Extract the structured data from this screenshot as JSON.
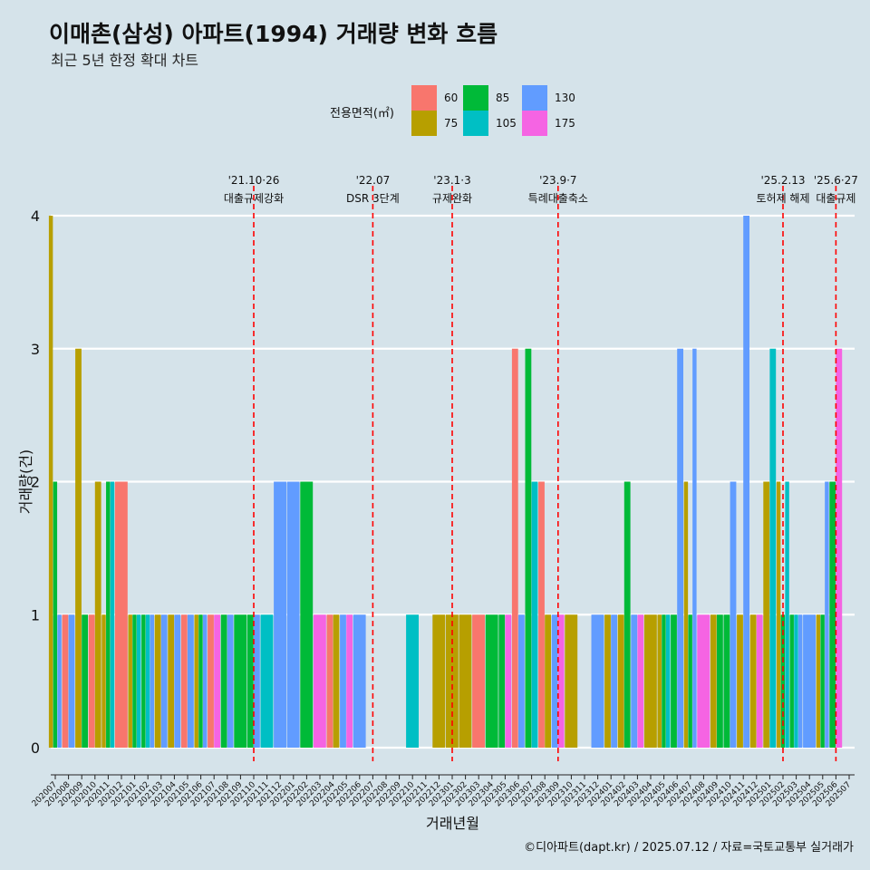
{
  "header": {
    "title": "이매촌(삼성) 아파트(1994) 거래량 변화 흐름",
    "subtitle": "최근 5년 한정 확대 차트"
  },
  "legend": {
    "title": "전용면적(㎡)",
    "items": [
      {
        "label": "60",
        "color": "#f8766d"
      },
      {
        "label": "75",
        "color": "#b79f00"
      },
      {
        "label": "85",
        "color": "#00ba38"
      },
      {
        "label": "105",
        "color": "#00bfc4"
      },
      {
        "label": "130",
        "color": "#619cff"
      },
      {
        "label": "175",
        "color": "#f564e3"
      }
    ]
  },
  "caption": "©디아파트(dapt.kr) / 2025.07.12 / 자료=국토교통부 실거래가",
  "chart_data": {
    "type": "bar",
    "stacking": "dodge",
    "xlabel": "거래년월",
    "ylabel": "거래량(건)",
    "ylim": [
      0,
      4
    ],
    "yticks": [
      0,
      1,
      2,
      3,
      4
    ],
    "categories": [
      "202007",
      "202008",
      "202009",
      "202010",
      "202011",
      "202012",
      "202101",
      "202102",
      "202103",
      "202104",
      "202105",
      "202106",
      "202107",
      "202108",
      "202109",
      "202110",
      "202111",
      "202112",
      "202201",
      "202202",
      "202203",
      "202204",
      "202205",
      "202206",
      "202207",
      "202208",
      "202209",
      "202210",
      "202211",
      "202212",
      "202301",
      "202302",
      "202303",
      "202304",
      "202305",
      "202306",
      "202307",
      "202308",
      "202309",
      "202310",
      "202311",
      "202312",
      "202401",
      "202402",
      "202403",
      "202404",
      "202405",
      "202406",
      "202407",
      "202408",
      "202409",
      "202410",
      "202411",
      "202412",
      "202501",
      "202502",
      "202503",
      "202504",
      "202505",
      "202506",
      "202507"
    ],
    "series": [
      {
        "name": "60",
        "color": "#f8766d",
        "values": [
          0,
          1,
          0,
          1,
          0,
          2,
          0,
          0,
          0,
          0,
          1,
          0,
          1,
          0,
          0,
          0,
          0,
          0,
          0,
          0,
          0,
          1,
          0,
          0,
          0,
          0,
          0,
          0,
          0,
          0,
          0,
          0,
          1,
          0,
          0,
          3,
          0,
          2,
          0,
          0,
          0,
          0,
          0,
          0,
          0,
          0,
          0,
          0,
          0,
          0,
          0,
          0,
          0,
          0,
          0,
          0,
          0,
          0,
          0,
          0,
          0
        ]
      },
      {
        "name": "75",
        "color": "#b79f00",
        "values": [
          4,
          0,
          3,
          2,
          1,
          0,
          1,
          0,
          1,
          1,
          0,
          1,
          0,
          0,
          0,
          0,
          0,
          0,
          0,
          0,
          0,
          1,
          0,
          0,
          0,
          0,
          0,
          0,
          0,
          1,
          1,
          1,
          0,
          0,
          0,
          0,
          0,
          1,
          0,
          1,
          0,
          0,
          1,
          1,
          0,
          1,
          1,
          0,
          2,
          0,
          1,
          0,
          1,
          1,
          2,
          2,
          0,
          0,
          1,
          0,
          0
        ]
      },
      {
        "name": "85",
        "color": "#00ba38",
        "values": [
          2,
          0,
          1,
          0,
          2,
          0,
          1,
          1,
          0,
          0,
          0,
          1,
          0,
          1,
          1,
          1,
          0,
          0,
          0,
          2,
          0,
          0,
          0,
          0,
          0,
          0,
          0,
          0,
          0,
          0,
          0,
          0,
          0,
          1,
          1,
          0,
          3,
          0,
          0,
          0,
          0,
          0,
          0,
          2,
          0,
          0,
          1,
          1,
          1,
          0,
          1,
          1,
          0,
          0,
          0,
          1,
          1,
          0,
          1,
          2,
          0
        ]
      },
      {
        "name": "105",
        "color": "#00bfc4",
        "values": [
          0,
          0,
          0,
          0,
          2,
          0,
          1,
          1,
          0,
          0,
          0,
          0,
          0,
          0,
          0,
          0,
          1,
          0,
          0,
          0,
          0,
          0,
          0,
          0,
          0,
          0,
          0,
          1,
          0,
          0,
          0,
          0,
          0,
          0,
          0,
          0,
          2,
          0,
          0,
          0,
          0,
          0,
          0,
          0,
          0,
          0,
          1,
          0,
          0,
          0,
          0,
          0,
          0,
          0,
          3,
          2,
          1,
          0,
          0,
          0,
          0
        ]
      },
      {
        "name": "130",
        "color": "#619cff",
        "values": [
          1,
          1,
          0,
          0,
          0,
          0,
          0,
          1,
          1,
          1,
          1,
          1,
          0,
          1,
          0,
          1,
          0,
          2,
          2,
          0,
          0,
          0,
          1,
          1,
          0,
          0,
          0,
          0,
          0,
          0,
          0,
          0,
          0,
          0,
          0,
          1,
          0,
          0,
          1,
          0,
          0,
          1,
          1,
          0,
          1,
          0,
          0,
          3,
          3,
          0,
          0,
          2,
          4,
          0,
          0,
          0,
          1,
          1,
          2,
          0,
          0
        ]
      },
      {
        "name": "175",
        "color": "#f564e3",
        "values": [
          0,
          0,
          0,
          0,
          0,
          0,
          0,
          0,
          0,
          0,
          0,
          0,
          1,
          0,
          0,
          0,
          0,
          0,
          0,
          0,
          1,
          0,
          1,
          0,
          0,
          0,
          0,
          0,
          0,
          0,
          0,
          0,
          0,
          0,
          1,
          0,
          0,
          0,
          1,
          0,
          0,
          0,
          0,
          0,
          1,
          0,
          0,
          0,
          0,
          1,
          0,
          0,
          0,
          1,
          0,
          0,
          0,
          0,
          0,
          3,
          0
        ]
      }
    ],
    "annotations": [
      {
        "x": "202110",
        "date": "'21.10·26",
        "label": "대출규제강화"
      },
      {
        "x": "202207",
        "date": "'22.07",
        "label": "DSR 3단계"
      },
      {
        "x": "202301",
        "date": "'23.1·3",
        "label": "규제완화"
      },
      {
        "x": "202309",
        "date": "'23.9·7",
        "label": "특례대출축소"
      },
      {
        "x": "202502",
        "date": "'25.2.13",
        "label": "토허제 해제"
      },
      {
        "x": "202506",
        "date": "'25.6·27",
        "label": "대출규제"
      }
    ]
  }
}
